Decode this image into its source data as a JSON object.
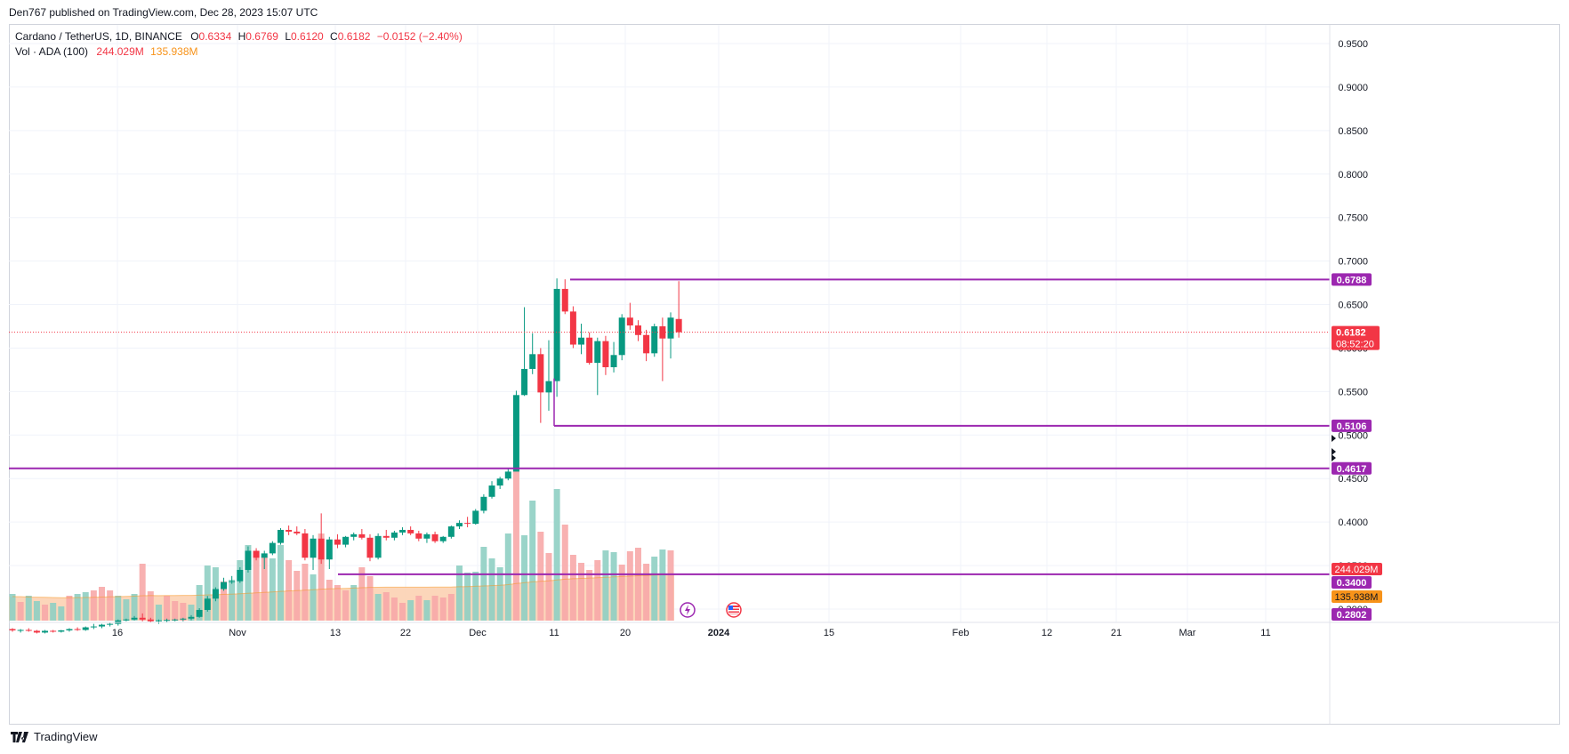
{
  "header": {
    "publisher_text": "Den767 published on TradingView.com, Dec 28, 2023 15:07 UTC"
  },
  "legend": {
    "symbol": "Cardano / TetherUS, 1D, BINANCE",
    "o_label": "O",
    "o_value": "0.6334",
    "h_label": "H",
    "h_value": "0.6769",
    "l_label": "L",
    "l_value": "0.6120",
    "c_label": "C",
    "c_value": "0.6182",
    "change": "−0.0152 (−2.40%)",
    "vol_label": "Vol · ADA (100)",
    "vol_value": "244.029M",
    "vol_ma_value": "135.938M"
  },
  "footer": {
    "brand": "TradingView"
  },
  "colors": {
    "up": "#089981",
    "down": "#f23645",
    "level": "#9c27b0",
    "vol_up": "#8fcfc3",
    "vol_down": "#f7a9a9",
    "vol_ma_area": "#fbcfae",
    "vol_ma_line": "#f7931a",
    "grid": "#f0f3fa",
    "last_price": "#f23645",
    "vol_label_bg": "#f7931a"
  },
  "chart_data": {
    "type": "candlestick",
    "symbol": "ADAUSDT",
    "interval": "1D",
    "y_axis_ticks": [
      "0.9500",
      "0.9000",
      "0.8500",
      "0.8000",
      "0.7500",
      "0.7000",
      "0.6500",
      "0.6000",
      "0.5500",
      "0.5000",
      "0.4500",
      "0.4000",
      "0.3500",
      "0.3000"
    ],
    "x_axis_ticks": [
      "16",
      "Nov",
      "13",
      "22",
      "Dec",
      "11",
      "20",
      "2024",
      "15",
      "Feb",
      "12",
      "21",
      "Mar",
      "11"
    ],
    "horizontal_levels": [
      {
        "label": "0.6788",
        "value": 0.6788
      },
      {
        "label": "0.5106",
        "value": 0.5106
      },
      {
        "label": "0.4617",
        "value": 0.4617
      },
      {
        "label": "0.3400",
        "value": 0.34
      },
      {
        "label": "0.2802",
        "value": 0.2802
      }
    ],
    "last_price": {
      "label": "0.6182",
      "countdown": "08:52:20",
      "value": 0.6182
    },
    "volume_labels": [
      "244.029M",
      "135.938M"
    ],
    "candles": [
      [
        0.277,
        0.278,
        0.274,
        0.2755
      ],
      [
        0.2755,
        0.277,
        0.273,
        0.276
      ],
      [
        0.276,
        0.278,
        0.274,
        0.275
      ],
      [
        0.275,
        0.276,
        0.272,
        0.273
      ],
      [
        0.273,
        0.276,
        0.272,
        0.275
      ],
      [
        0.275,
        0.276,
        0.273,
        0.274
      ],
      [
        0.274,
        0.276,
        0.273,
        0.2755
      ],
      [
        0.2755,
        0.278,
        0.274,
        0.277
      ],
      [
        0.277,
        0.279,
        0.275,
        0.276
      ],
      [
        0.276,
        0.28,
        0.275,
        0.279
      ],
      [
        0.279,
        0.283,
        0.277,
        0.28
      ],
      [
        0.28,
        0.283,
        0.278,
        0.282
      ],
      [
        0.282,
        0.284,
        0.28,
        0.283
      ],
      [
        0.283,
        0.288,
        0.281,
        0.287
      ],
      [
        0.287,
        0.289,
        0.286,
        0.288
      ],
      [
        0.288,
        0.292,
        0.287,
        0.29
      ],
      [
        0.29,
        0.295,
        0.286,
        0.288
      ],
      [
        0.288,
        0.29,
        0.285,
        0.286
      ],
      [
        0.286,
        0.288,
        0.283,
        0.287
      ],
      [
        0.287,
        0.289,
        0.285,
        0.2875
      ],
      [
        0.2875,
        0.289,
        0.286,
        0.288
      ],
      [
        0.288,
        0.29,
        0.286,
        0.289
      ],
      [
        0.289,
        0.293,
        0.287,
        0.291
      ],
      [
        0.291,
        0.301,
        0.29,
        0.299
      ],
      [
        0.299,
        0.315,
        0.297,
        0.312
      ],
      [
        0.312,
        0.325,
        0.309,
        0.323
      ],
      [
        0.323,
        0.336,
        0.321,
        0.331
      ],
      [
        0.331,
        0.338,
        0.329,
        0.332
      ],
      [
        0.332,
        0.348,
        0.33,
        0.345
      ],
      [
        0.345,
        0.372,
        0.342,
        0.367
      ],
      [
        0.367,
        0.37,
        0.356,
        0.359
      ],
      [
        0.359,
        0.367,
        0.346,
        0.364
      ],
      [
        0.364,
        0.378,
        0.362,
        0.376
      ],
      [
        0.376,
        0.393,
        0.374,
        0.391
      ],
      [
        0.391,
        0.396,
        0.385,
        0.389
      ],
      [
        0.389,
        0.395,
        0.385,
        0.387
      ],
      [
        0.387,
        0.392,
        0.356,
        0.359
      ],
      [
        0.359,
        0.385,
        0.345,
        0.381
      ],
      [
        0.381,
        0.41,
        0.352,
        0.357
      ],
      [
        0.357,
        0.383,
        0.346,
        0.38
      ],
      [
        0.38,
        0.386,
        0.37,
        0.374
      ],
      [
        0.374,
        0.384,
        0.371,
        0.383
      ],
      [
        0.383,
        0.388,
        0.379,
        0.386
      ],
      [
        0.386,
        0.392,
        0.38,
        0.382
      ],
      [
        0.382,
        0.386,
        0.355,
        0.359
      ],
      [
        0.359,
        0.387,
        0.357,
        0.384
      ],
      [
        0.384,
        0.391,
        0.379,
        0.382
      ],
      [
        0.382,
        0.39,
        0.379,
        0.388
      ],
      [
        0.388,
        0.394,
        0.385,
        0.391
      ],
      [
        0.391,
        0.395,
        0.385,
        0.387
      ],
      [
        0.387,
        0.39,
        0.378,
        0.381
      ],
      [
        0.381,
        0.388,
        0.376,
        0.386
      ],
      [
        0.386,
        0.389,
        0.376,
        0.378
      ],
      [
        0.378,
        0.384,
        0.376,
        0.383
      ],
      [
        0.383,
        0.396,
        0.381,
        0.395
      ],
      [
        0.395,
        0.402,
        0.392,
        0.399
      ],
      [
        0.399,
        0.406,
        0.394,
        0.398
      ],
      [
        0.398,
        0.415,
        0.397,
        0.413
      ],
      [
        0.413,
        0.432,
        0.41,
        0.429
      ],
      [
        0.429,
        0.447,
        0.427,
        0.442
      ],
      [
        0.442,
        0.452,
        0.438,
        0.45
      ],
      [
        0.45,
        0.462,
        0.448,
        0.458
      ],
      [
        0.458,
        0.551,
        0.46,
        0.546
      ],
      [
        0.546,
        0.647,
        0.545,
        0.576
      ],
      [
        0.576,
        0.617,
        0.57,
        0.593
      ],
      [
        0.593,
        0.6,
        0.514,
        0.549
      ],
      [
        0.549,
        0.609,
        0.528,
        0.562
      ],
      [
        0.562,
        0.68,
        0.544,
        0.668
      ],
      [
        0.668,
        0.679,
        0.639,
        0.642
      ],
      [
        0.642,
        0.648,
        0.6,
        0.604
      ],
      [
        0.604,
        0.628,
        0.593,
        0.612
      ],
      [
        0.612,
        0.618,
        0.581,
        0.583
      ],
      [
        0.583,
        0.612,
        0.546,
        0.608
      ],
      [
        0.608,
        0.614,
        0.569,
        0.578
      ],
      [
        0.578,
        0.607,
        0.572,
        0.592
      ],
      [
        0.592,
        0.639,
        0.586,
        0.635
      ],
      [
        0.635,
        0.652,
        0.621,
        0.626
      ],
      [
        0.626,
        0.632,
        0.608,
        0.615
      ],
      [
        0.615,
        0.621,
        0.585,
        0.594
      ],
      [
        0.594,
        0.628,
        0.59,
        0.625
      ],
      [
        0.625,
        0.635,
        0.562,
        0.611
      ],
      [
        0.611,
        0.641,
        0.588,
        0.635
      ],
      [
        0.6334,
        0.6769,
        0.612,
        0.6182
      ]
    ],
    "volume": [
      [
        30,
        0
      ],
      [
        21,
        1
      ],
      [
        28,
        0
      ],
      [
        22,
        0
      ],
      [
        18,
        1
      ],
      [
        20,
        0
      ],
      [
        16,
        0
      ],
      [
        28,
        1
      ],
      [
        30,
        0
      ],
      [
        32,
        0
      ],
      [
        34,
        1
      ],
      [
        38,
        1
      ],
      [
        34,
        1
      ],
      [
        28,
        0
      ],
      [
        24,
        0
      ],
      [
        30,
        0
      ],
      [
        64,
        1
      ],
      [
        33,
        1
      ],
      [
        18,
        0
      ],
      [
        28,
        1
      ],
      [
        22,
        1
      ],
      [
        20,
        1
      ],
      [
        18,
        0
      ],
      [
        40,
        0
      ],
      [
        62,
        0
      ],
      [
        60,
        0
      ],
      [
        44,
        1
      ],
      [
        46,
        0
      ],
      [
        68,
        0
      ],
      [
        85,
        0
      ],
      [
        78,
        1
      ],
      [
        72,
        1
      ],
      [
        70,
        0
      ],
      [
        85,
        0
      ],
      [
        68,
        1
      ],
      [
        56,
        1
      ],
      [
        64,
        1
      ],
      [
        52,
        0
      ],
      [
        98,
        1
      ],
      [
        46,
        1
      ],
      [
        40,
        1
      ],
      [
        34,
        1
      ],
      [
        40,
        0
      ],
      [
        60,
        1
      ],
      [
        50,
        1
      ],
      [
        30,
        0
      ],
      [
        32,
        1
      ],
      [
        26,
        1
      ],
      [
        20,
        1
      ],
      [
        23,
        0
      ],
      [
        28,
        1
      ],
      [
        23,
        0
      ],
      [
        28,
        1
      ],
      [
        26,
        1
      ],
      [
        30,
        1
      ],
      [
        62,
        0
      ],
      [
        54,
        0
      ],
      [
        55,
        0
      ],
      [
        83,
        0
      ],
      [
        70,
        0
      ],
      [
        60,
        0
      ],
      [
        98,
        0
      ],
      [
        172,
        1
      ],
      [
        96,
        0
      ],
      [
        135,
        0
      ],
      [
        100,
        1
      ],
      [
        76,
        1
      ],
      [
        148,
        0
      ],
      [
        108,
        1
      ],
      [
        74,
        1
      ],
      [
        65,
        1
      ],
      [
        57,
        1
      ],
      [
        68,
        1
      ],
      [
        79,
        0
      ],
      [
        77,
        0
      ],
      [
        63,
        1
      ],
      [
        78,
        1
      ],
      [
        82,
        1
      ],
      [
        64,
        1
      ],
      [
        72,
        0
      ],
      [
        80,
        0
      ],
      [
        79,
        1
      ]
    ],
    "volume_ma": [
      27,
      27,
      26.5,
      26.4,
      26.2,
      26,
      25.8,
      25.8,
      25.9,
      26,
      26.2,
      26.5,
      26.8,
      27,
      27.2,
      27.5,
      28,
      28.2,
      28.1,
      28.2,
      28.3,
      28.4,
      28.4,
      28.6,
      28.9,
      29.2,
      29.5,
      29.8,
      30.2,
      30.8,
      31.3,
      31.8,
      32.3,
      32.9,
      33.4,
      33.8,
      34.3,
      34.7,
      35.4,
      35.8,
      36.1,
      36.3,
      36.6,
      37,
      37.4,
      37.5,
      37.6,
      37.6,
      37.6,
      37.6,
      37.6,
      37.6,
      37.7,
      37.7,
      37.8,
      38.1,
      38.3,
      38.6,
      39,
      39.4,
      39.8,
      40.5,
      41.8,
      42.6,
      43.6,
      44.3,
      44.8,
      45.8,
      46.6,
      47.1,
      47.5,
      47.9,
      48.3,
      48.8,
      49.3,
      49.6,
      50,
      50.5,
      50.8,
      51.2,
      51.6,
      52
    ]
  }
}
